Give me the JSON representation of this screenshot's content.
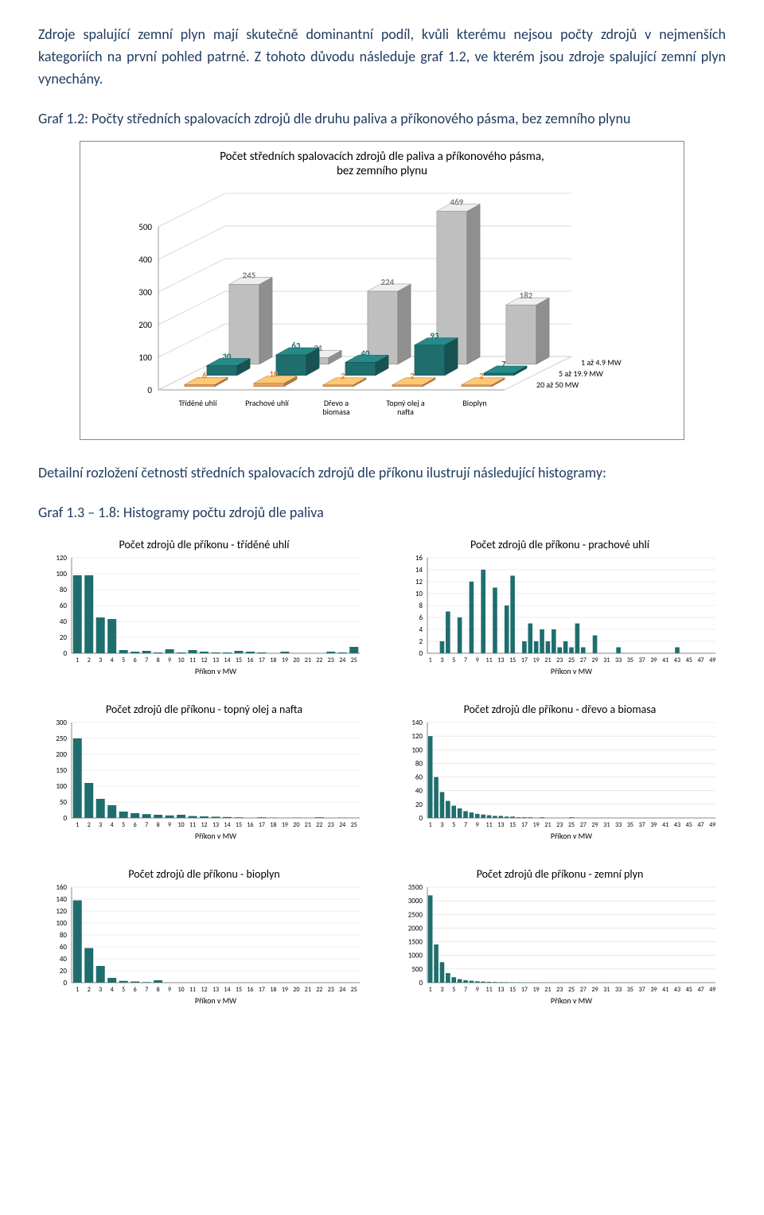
{
  "para1": "Zdroje spalující zemní plyn mají skutečně dominantní podíl, kvůli kterému nejsou počty zdrojů v nejmenších kategoriích na první pohled patrné. Z tohoto důvodu následuje graf 1.2, ve kterém jsou zdroje spalující zemní plyn vynechány.",
  "caption1": "Graf 1.2: Počty středních spalovacích zdrojů dle druhu paliva a příkonového pásma, bez zemního plynu",
  "para2": "Detailní rozložení četností středních spalovacích zdrojů dle příkonu ilustrují následující histogramy:",
  "caption2": "Graf 1.3 – 1.8: Histogramy počtu zdrojů dle paliva",
  "colors": {
    "teal": "#1f6e6e",
    "tealLight": "#2a8585",
    "gray": "#bfbfbf",
    "grayLight": "#d9d9d9",
    "orange": "#e8a05c",
    "axis": "#888888",
    "label": "#000000",
    "tealLabel": "#1f6e6e",
    "orangeLabel": "#d9822b",
    "grayLabel": "#7f7f7f"
  },
  "bar3d": {
    "title": "Počet středních spalovacích zdrojů dle paliva a příkonového pásma,\nbez zemního plynu",
    "ymax": 500,
    "ytick": 100,
    "categories": [
      "Tříděné uhlí",
      "Prachové uhlí",
      "Dřevo a\nbiomasa",
      "Topný olej a\nnafta",
      "Bioplyn"
    ],
    "series": [
      {
        "name": "20 až 50 MW",
        "color": "orange",
        "labelColor": "orangeLabel",
        "values": [
          6,
          10,
          2,
          2,
          2
        ]
      },
      {
        "name": "5 až 19.9 MW",
        "color": "teal",
        "labelColor": "tealLabel",
        "values": [
          30,
          63,
          40,
          93,
          7
        ]
      },
      {
        "name": "1 až 4.9 MW",
        "color": "gray",
        "labelColor": "grayLabel",
        "values": [
          245,
          21,
          224,
          469,
          182
        ]
      }
    ]
  },
  "histograms": [
    {
      "title": "Počet zdrojů dle příkonu  - tříděné uhlí",
      "ymax": 120,
      "ytick": 20,
      "xmax": 25,
      "xtick": 1,
      "xlabelEvery": 1,
      "xlabel": "Příkon v MW",
      "values": [
        98,
        98,
        45,
        43,
        4,
        2,
        3,
        1,
        5,
        1,
        4,
        2,
        1,
        1,
        3,
        2,
        1,
        0,
        2,
        0,
        0,
        0,
        2,
        1,
        8
      ]
    },
    {
      "title": "Počet zdrojů dle příkonu  - prachové uhlí",
      "ymax": 16,
      "ytick": 2,
      "xmax": 49,
      "xtick": 1,
      "xlabelEvery": 2,
      "xlabel": "Příkon v MW",
      "values": [
        0,
        0,
        2,
        7,
        0,
        6,
        0,
        12,
        0,
        14,
        0,
        11,
        0,
        8,
        13,
        0,
        2,
        5,
        2,
        4,
        2,
        4,
        1,
        2,
        1,
        5,
        1,
        0,
        3,
        0,
        0,
        0,
        1,
        0,
        0,
        0,
        0,
        0,
        0,
        0,
        0,
        0,
        1,
        0,
        0,
        0,
        0,
        0,
        0
      ]
    },
    {
      "title": "Počet zdrojů dle příkonu  - topný olej a nafta",
      "ymax": 300,
      "ytick": 50,
      "xmax": 25,
      "xtick": 1,
      "xlabelEvery": 1,
      "xlabel": "Příkon v MW",
      "values": [
        250,
        110,
        60,
        40,
        20,
        15,
        12,
        10,
        8,
        10,
        6,
        5,
        4,
        3,
        2,
        0,
        2,
        1,
        0,
        1,
        0,
        2,
        0,
        1,
        0
      ]
    },
    {
      "title": "Počet zdrojů dle příkonu  - dřevo a biomasa",
      "ymax": 140,
      "ytick": 20,
      "xmax": 49,
      "xtick": 1,
      "xlabelEvery": 2,
      "xlabel": "Příkon v MW",
      "values": [
        120,
        60,
        38,
        25,
        18,
        14,
        10,
        8,
        6,
        5,
        4,
        3,
        3,
        2,
        2,
        1,
        1,
        1,
        0,
        1,
        0,
        0,
        0,
        0,
        1,
        0,
        0,
        0,
        0,
        0,
        0,
        0,
        0,
        0,
        0,
        0,
        0,
        0,
        0,
        0,
        0,
        0,
        0,
        0,
        0,
        0,
        0,
        0,
        0
      ]
    },
    {
      "title": "Počet zdrojů dle příkonu  -  bioplyn",
      "ymax": 160,
      "ytick": 20,
      "xmax": 25,
      "xtick": 1,
      "xlabelEvery": 1,
      "xlabel": "Příkon v MW",
      "values": [
        138,
        58,
        28,
        8,
        3,
        2,
        1,
        4,
        0,
        0,
        0,
        0,
        0,
        0,
        0,
        0,
        0,
        0,
        0,
        0,
        0,
        0,
        0,
        0,
        0
      ]
    },
    {
      "title": "Počet zdrojů dle příkonu  - zemní plyn",
      "ymax": 3500,
      "ytick": 500,
      "xmax": 49,
      "xtick": 1,
      "xlabelEvery": 2,
      "xlabel": "Příkon v MW",
      "values": [
        3200,
        1400,
        750,
        350,
        200,
        130,
        90,
        70,
        50,
        40,
        30,
        25,
        20,
        18,
        15,
        12,
        10,
        8,
        7,
        6,
        5,
        4,
        4,
        3,
        3,
        2,
        2,
        2,
        1,
        1,
        1,
        1,
        0,
        1,
        0,
        0,
        0,
        0,
        0,
        0,
        0,
        0,
        0,
        0,
        0,
        0,
        0,
        0,
        0
      ]
    }
  ]
}
